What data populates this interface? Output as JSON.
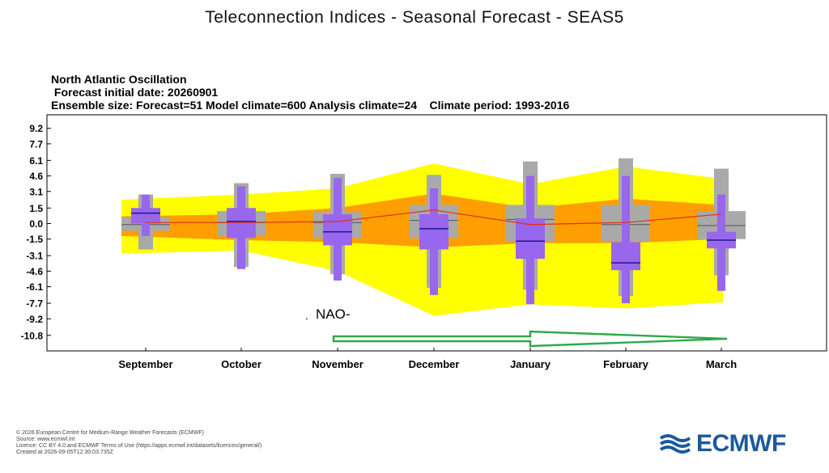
{
  "page_title": "Teleconnection Indices - Seasonal Forecast - SEAS5",
  "chart_header": {
    "line1": "North Atlantic Oscillation",
    "line2": " Forecast initial date: 20260901",
    "line3": "Ensemble size: Forecast=51 Model climate=600 Analysis climate=24    Climate period: 1993-2016"
  },
  "annotation": {
    "dot": ".",
    "label": "NAO-",
    "arrow_color": "#2fa84a"
  },
  "chart_data": {
    "type": "box",
    "title": "North Atlantic Oscillation",
    "categories": [
      "September",
      "October",
      "November",
      "December",
      "January",
      "February",
      "March"
    ],
    "y_ticks": [
      "9.2",
      "7.7",
      "6.1",
      "4.6",
      "3.1",
      "1.5",
      "0.0",
      "-1.5",
      "-3.1",
      "-4.6",
      "-6.1",
      "-7.7",
      "-9.2",
      "-10.8"
    ],
    "ylim": [
      -12.3,
      10.5
    ],
    "climate_yellow_band": [
      [
        2.3,
        -2.9
      ],
      [
        2.8,
        -2.6
      ],
      [
        3.4,
        -4.6
      ],
      [
        5.8,
        -8.9
      ],
      [
        3.8,
        -7.8
      ],
      [
        5.5,
        -8.2
      ],
      [
        4.3,
        -7.6
      ]
    ],
    "climate_orange_band": [
      [
        0.7,
        -1.2
      ],
      [
        0.9,
        -1.6
      ],
      [
        1.5,
        -1.8
      ],
      [
        2.9,
        -2.3
      ],
      [
        1.5,
        -1.9
      ],
      [
        2.4,
        -1.9
      ],
      [
        1.8,
        -1.5
      ]
    ],
    "model_climate_gray": [
      {
        "whisker_low": -2.5,
        "box_low": -0.7,
        "median": -0.1,
        "box_high": 0.6,
        "whisker_high": 2.8
      },
      {
        "whisker_low": -4.2,
        "box_low": -1.2,
        "median": 0.1,
        "box_high": 1.2,
        "whisker_high": 3.9
      },
      {
        "whisker_low": -4.9,
        "box_low": -1.4,
        "median": 0.1,
        "box_high": 1.1,
        "whisker_high": 4.8
      },
      {
        "whisker_low": -6.2,
        "box_low": -1.4,
        "median": 0.3,
        "box_high": 1.8,
        "whisker_high": 4.7
      },
      {
        "whisker_low": -6.4,
        "box_low": -1.7,
        "median": 0.4,
        "box_high": 1.8,
        "whisker_high": 6.0
      },
      {
        "whisker_low": -7.0,
        "box_low": -1.7,
        "median": -0.1,
        "box_high": 1.8,
        "whisker_high": 6.3
      },
      {
        "whisker_low": -5.0,
        "box_low": -1.5,
        "median": -0.2,
        "box_high": 1.2,
        "whisker_high": 5.3
      }
    ],
    "forecast_purple": [
      {
        "whisker_low": -1.2,
        "box_low": 0.0,
        "median": 1.0,
        "box_high": 1.5,
        "whisker_high": 2.8
      },
      {
        "whisker_low": -4.4,
        "box_low": -1.4,
        "median": 0.2,
        "box_high": 1.5,
        "whisker_high": 3.6
      },
      {
        "whisker_low": -5.5,
        "box_low": -2.1,
        "median": -0.8,
        "box_high": 0.9,
        "whisker_high": 4.4
      },
      {
        "whisker_low": -6.9,
        "box_low": -2.5,
        "median": -0.5,
        "box_high": 0.9,
        "whisker_high": 3.4
      },
      {
        "whisker_low": -7.8,
        "box_low": -3.4,
        "median": -1.7,
        "box_high": 0.5,
        "whisker_high": 4.6
      },
      {
        "whisker_low": -7.7,
        "box_low": -4.5,
        "median": -3.8,
        "box_high": -1.8,
        "whisker_high": 4.6
      },
      {
        "whisker_low": -6.5,
        "box_low": -2.4,
        "median": -1.6,
        "box_high": -0.8,
        "whisker_high": 2.8
      }
    ],
    "analysis_climate_line": [
      0.1,
      0.1,
      0.2,
      1.3,
      -0.1,
      0.1,
      0.9
    ],
    "colors": {
      "yellow_band": "#ffff00",
      "orange_band": "#ff9e00",
      "gray_box": "#a9a9a9",
      "purple_box": "#9966ee",
      "median_line": "#1a1a8c",
      "climate_line": "#e03010"
    },
    "grid": false
  },
  "footer": {
    "line1": "© 2026 European Centre for Medium-Range Weather Forecasts (ECMWF)",
    "line2": "Source: www.ecmwf.int",
    "line3": "Licence: CC BY 4.0 and ECMWF Terms of Use (https://apps.ecmwf.int/datasets/licences/general/)",
    "line4": "Created at 2026-09-05T12:30:03.735Z"
  },
  "logo": {
    "text": "ECMWF",
    "color": "#1a5a9c"
  }
}
